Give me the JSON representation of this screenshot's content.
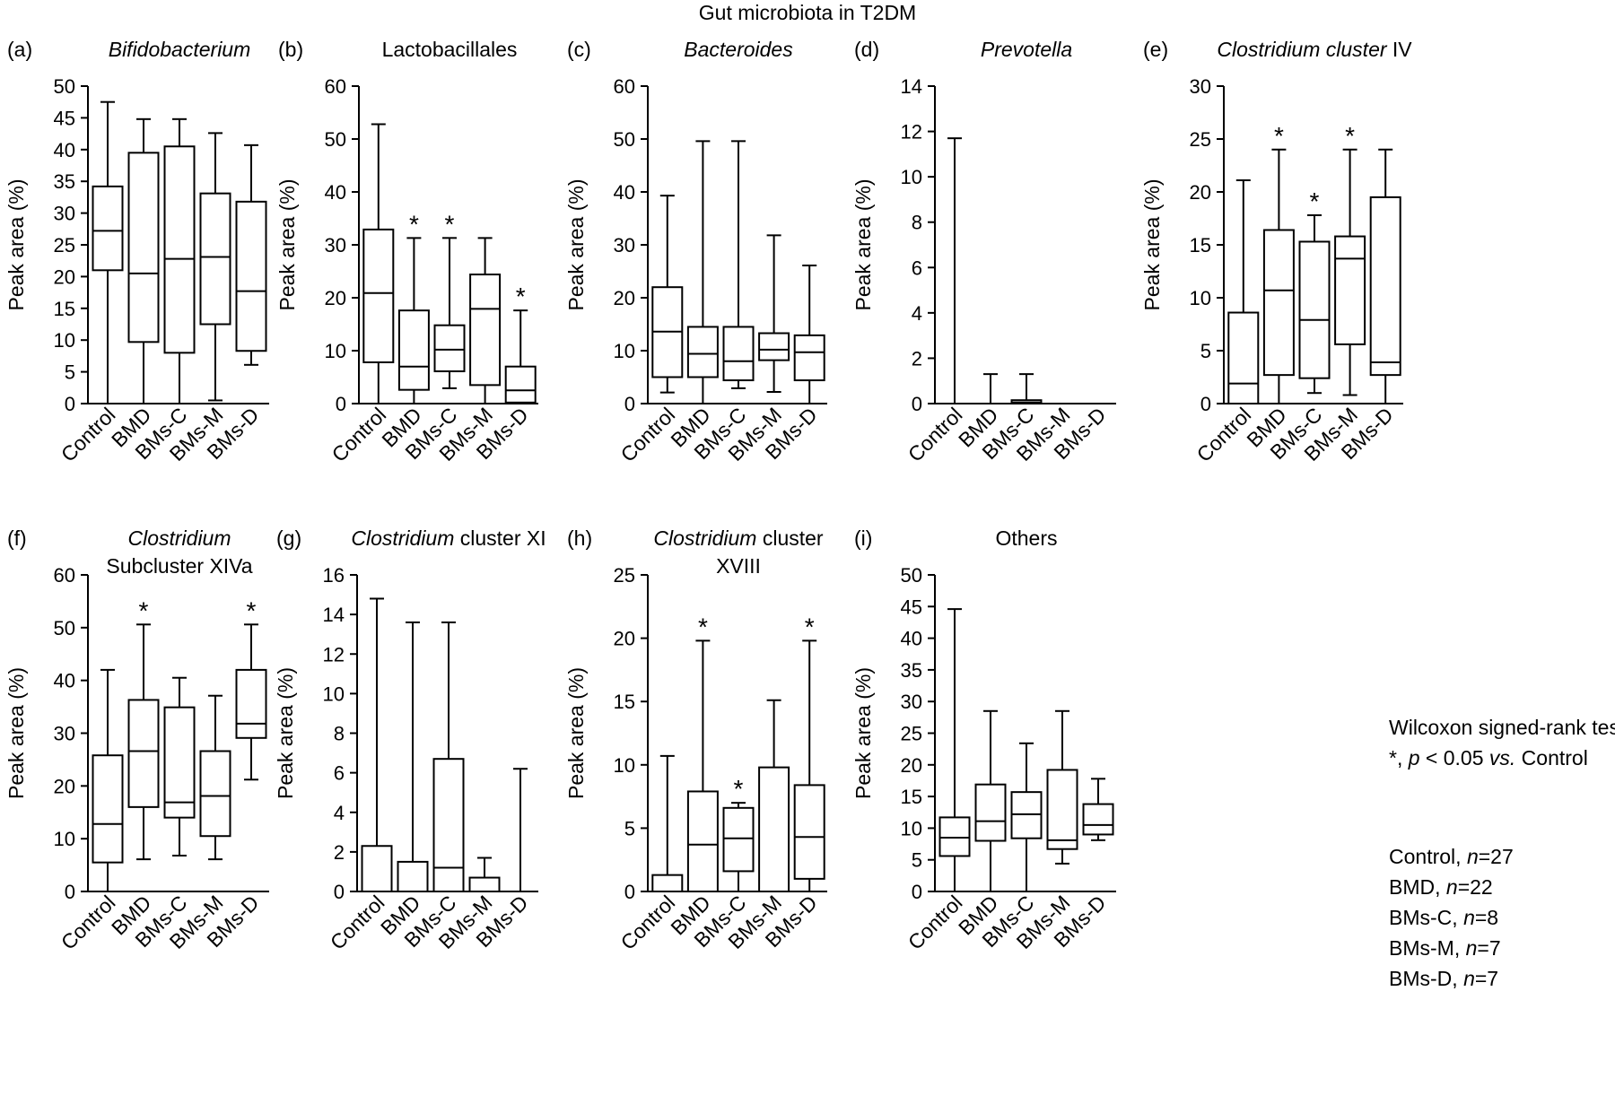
{
  "figure_title": "Gut microbiota in T2DM",
  "y_axis_label": "Peak area (%)",
  "significance_note": {
    "test": "Wilcoxon signed-rank test",
    "p_prefix": "*, ",
    "p_italic": "p",
    "p_value": " < 0.05 ",
    "vs_italic": "vs.",
    "reference": " Control"
  },
  "group_legend": [
    {
      "group": "Control",
      "n_label": "n",
      "n": "=27"
    },
    {
      "group": "BMD",
      "n_label": "n",
      "n": "=22"
    },
    {
      "group": "BMs-C",
      "n_label": "n",
      "n": "=8"
    },
    {
      "group": "BMs-M",
      "n_label": "n",
      "n": "=7"
    },
    {
      "group": "BMs-D",
      "n_label": "n",
      "n": "=7"
    }
  ],
  "chart_data": [
    {
      "type": "boxplot",
      "panel": "(a)",
      "title_parts": [
        {
          "text": "Bifidobacterium",
          "italic": true
        }
      ],
      "categories": [
        "Control",
        "BMD",
        "BMs-C",
        "BMs-M",
        "BMs-D"
      ],
      "ylim": [
        0,
        50
      ],
      "yticks": [
        0,
        5,
        10,
        15,
        20,
        25,
        30,
        35,
        40,
        45,
        50
      ],
      "ylabel": "Peak area (%)",
      "boxes": [
        {
          "min": 0,
          "q1": 21,
          "median": 27.2,
          "q3": 34.2,
          "max": 47.5,
          "significant": false
        },
        {
          "min": 0,
          "q1": 9.7,
          "median": 20.5,
          "q3": 39.5,
          "max": 44.8,
          "significant": false
        },
        {
          "min": 0,
          "q1": 8,
          "median": 22.8,
          "q3": 40.5,
          "max": 44.8,
          "significant": false
        },
        {
          "min": 0.5,
          "q1": 12.5,
          "median": 23.1,
          "q3": 33.1,
          "max": 42.6,
          "significant": false
        },
        {
          "min": 6.1,
          "q1": 8.3,
          "median": 17.7,
          "q3": 31.8,
          "max": 40.7,
          "significant": false
        }
      ]
    },
    {
      "type": "boxplot",
      "panel": "(b)",
      "title_parts": [
        {
          "text": "Lactobacillales",
          "italic": false
        }
      ],
      "categories": [
        "Control",
        "BMD",
        "BMs-C",
        "BMs-M",
        "BMs-D"
      ],
      "ylim": [
        0,
        60
      ],
      "yticks": [
        0,
        10,
        20,
        30,
        40,
        50,
        60
      ],
      "ylabel": "Peak area (%)",
      "boxes": [
        {
          "min": 0,
          "q1": 7.8,
          "median": 20.9,
          "q3": 32.9,
          "max": 52.8,
          "significant": false
        },
        {
          "min": 0,
          "q1": 2.6,
          "median": 7,
          "q3": 17.6,
          "max": 31.3,
          "significant": true
        },
        {
          "min": 2.9,
          "q1": 6.1,
          "median": 10.2,
          "q3": 14.8,
          "max": 31.3,
          "significant": true
        },
        {
          "min": 0,
          "q1": 3.5,
          "median": 17.9,
          "q3": 24.4,
          "max": 31.3,
          "significant": false
        },
        {
          "min": 0,
          "q1": 0.2,
          "median": 2.5,
          "q3": 7,
          "max": 17.6,
          "significant": true
        }
      ]
    },
    {
      "type": "boxplot",
      "panel": "(c)",
      "title_parts": [
        {
          "text": "Bacteroides",
          "italic": true
        }
      ],
      "categories": [
        "Control",
        "BMD",
        "BMs-C",
        "BMs-M",
        "BMs-D"
      ],
      "ylim": [
        0,
        60
      ],
      "yticks": [
        0,
        10,
        20,
        30,
        40,
        50,
        60
      ],
      "ylabel": "Peak area (%)",
      "boxes": [
        {
          "min": 2.1,
          "q1": 5,
          "median": 13.6,
          "q3": 22,
          "max": 39.3,
          "significant": false
        },
        {
          "min": 0,
          "q1": 5,
          "median": 9.4,
          "q3": 14.5,
          "max": 49.6,
          "significant": false
        },
        {
          "min": 2.9,
          "q1": 4.4,
          "median": 8,
          "q3": 14.5,
          "max": 49.6,
          "significant": false
        },
        {
          "min": 2.2,
          "q1": 8.2,
          "median": 10.2,
          "q3": 13.3,
          "max": 31.8,
          "significant": false
        },
        {
          "min": 0,
          "q1": 4.4,
          "median": 9.7,
          "q3": 12.9,
          "max": 26.1,
          "significant": false
        }
      ]
    },
    {
      "type": "boxplot",
      "panel": "(d)",
      "title_parts": [
        {
          "text": "Prevotella",
          "italic": true
        }
      ],
      "categories": [
        "Control",
        "BMD",
        "BMs-C",
        "BMs-M",
        "BMs-D"
      ],
      "ylim": [
        0,
        14
      ],
      "yticks": [
        0,
        2,
        4,
        6,
        8,
        10,
        12,
        14
      ],
      "ylabel": "Peak area (%)",
      "boxes": [
        {
          "min": 0,
          "q1": 0,
          "median": 0,
          "q3": 0,
          "max": 11.7,
          "significant": false
        },
        {
          "min": 0,
          "q1": 0,
          "median": 0,
          "q3": 0,
          "max": 1.3,
          "significant": false
        },
        {
          "min": 0,
          "q1": 0,
          "median": 0.05,
          "q3": 0.15,
          "max": 1.3,
          "significant": false
        },
        {
          "min": 0,
          "q1": 0,
          "median": 0,
          "q3": 0,
          "max": 0,
          "significant": false
        },
        {
          "min": 0,
          "q1": 0,
          "median": 0,
          "q3": 0,
          "max": 0,
          "significant": false
        }
      ]
    },
    {
      "type": "boxplot",
      "panel": "(e)",
      "title_parts": [
        {
          "text": "Clostridium cluster",
          "italic": true
        },
        {
          "text": " IV",
          "italic": false
        }
      ],
      "categories": [
        "Control",
        "BMD",
        "BMs-C",
        "BMs-M",
        "BMs-D"
      ],
      "ylim": [
        0,
        30
      ],
      "yticks": [
        0,
        5,
        10,
        15,
        20,
        25,
        30
      ],
      "ylabel": "Peak area (%)",
      "boxes": [
        {
          "min": 0,
          "q1": 0,
          "median": 1.9,
          "q3": 8.6,
          "max": 21.1,
          "significant": false
        },
        {
          "min": 0,
          "q1": 2.7,
          "median": 10.7,
          "q3": 16.4,
          "max": 24,
          "significant": true
        },
        {
          "min": 1,
          "q1": 2.4,
          "median": 7.9,
          "q3": 15.3,
          "max": 17.8,
          "significant": true
        },
        {
          "min": 0.8,
          "q1": 5.6,
          "median": 13.7,
          "q3": 15.8,
          "max": 24,
          "significant": true
        },
        {
          "min": 0,
          "q1": 2.7,
          "median": 3.9,
          "q3": 19.5,
          "max": 24,
          "significant": false
        }
      ]
    },
    {
      "type": "boxplot",
      "panel": "(f)",
      "title_parts": [
        {
          "text": "Clostridium",
          "italic": true
        }
      ],
      "title_line2": "Subcluster XIVa",
      "categories": [
        "Control",
        "BMD",
        "BMs-C",
        "BMs-M",
        "BMs-D"
      ],
      "ylim": [
        0,
        60
      ],
      "yticks": [
        0,
        10,
        20,
        30,
        40,
        50,
        60
      ],
      "ylabel": "Peak area (%)",
      "boxes": [
        {
          "min": 0,
          "q1": 5.5,
          "median": 12.8,
          "q3": 25.8,
          "max": 42,
          "significant": false
        },
        {
          "min": 6.1,
          "q1": 16,
          "median": 26.6,
          "q3": 36.3,
          "max": 50.6,
          "significant": true
        },
        {
          "min": 6.8,
          "q1": 14,
          "median": 16.9,
          "q3": 34.9,
          "max": 40.5,
          "significant": false
        },
        {
          "min": 6.1,
          "q1": 10.5,
          "median": 18.1,
          "q3": 26.6,
          "max": 37.1,
          "significant": false
        },
        {
          "min": 21.2,
          "q1": 29.1,
          "median": 31.8,
          "q3": 42,
          "max": 50.6,
          "significant": true
        }
      ]
    },
    {
      "type": "boxplot",
      "panel": "(g)",
      "title_parts": [
        {
          "text": "Clostridium",
          "italic": true
        },
        {
          "text": " cluster XI",
          "italic": false
        }
      ],
      "categories": [
        "Control",
        "BMD",
        "BMs-C",
        "BMs-M",
        "BMs-D"
      ],
      "ylim": [
        0,
        16
      ],
      "yticks": [
        0,
        2,
        4,
        6,
        8,
        10,
        12,
        14,
        16
      ],
      "ylabel": "Peak area (%)",
      "boxes": [
        {
          "min": 0,
          "q1": 0,
          "median": 0,
          "q3": 2.3,
          "max": 14.8,
          "significant": false
        },
        {
          "min": 0,
          "q1": 0,
          "median": 0,
          "q3": 1.5,
          "max": 13.6,
          "significant": false
        },
        {
          "min": 0,
          "q1": 0,
          "median": 1.2,
          "q3": 6.7,
          "max": 13.6,
          "significant": false
        },
        {
          "min": 0,
          "q1": 0,
          "median": 0,
          "q3": 0.7,
          "max": 1.7,
          "significant": false
        },
        {
          "min": 0,
          "q1": 0,
          "median": 0,
          "q3": 0,
          "max": 6.2,
          "significant": false
        }
      ]
    },
    {
      "type": "boxplot",
      "panel": "(h)",
      "title_parts": [
        {
          "text": "Clostridium",
          "italic": true
        },
        {
          "text": " cluster",
          "italic": false
        }
      ],
      "title_line2": "XVIII",
      "categories": [
        "Control",
        "BMD",
        "BMs-C",
        "BMs-M",
        "BMs-D"
      ],
      "ylim": [
        0,
        25
      ],
      "yticks": [
        0,
        5,
        10,
        15,
        20,
        25
      ],
      "ylabel": "Peak area (%)",
      "boxes": [
        {
          "min": 0,
          "q1": 0,
          "median": 0,
          "q3": 1.3,
          "max": 10.7,
          "significant": false
        },
        {
          "min": 0,
          "q1": 0,
          "median": 3.7,
          "q3": 7.9,
          "max": 19.8,
          "significant": true
        },
        {
          "min": 0,
          "q1": 1.6,
          "median": 4.2,
          "q3": 6.6,
          "max": 7,
          "significant": true
        },
        {
          "min": 0,
          "q1": 0,
          "median": 0,
          "q3": 9.8,
          "max": 15.1,
          "significant": false
        },
        {
          "min": 0,
          "q1": 1,
          "median": 4.3,
          "q3": 8.4,
          "max": 19.8,
          "significant": true
        }
      ]
    },
    {
      "type": "boxplot",
      "panel": "(i)",
      "title_parts": [
        {
          "text": "Others",
          "italic": false
        }
      ],
      "categories": [
        "Control",
        "BMD",
        "BMs-C",
        "BMs-M",
        "BMs-D"
      ],
      "ylim": [
        0,
        50
      ],
      "yticks": [
        0,
        5,
        10,
        15,
        20,
        25,
        30,
        35,
        40,
        45,
        50
      ],
      "ylabel": "Peak area (%)",
      "boxes": [
        {
          "min": 0,
          "q1": 5.6,
          "median": 8.5,
          "q3": 11.7,
          "max": 44.6,
          "significant": false
        },
        {
          "min": 0,
          "q1": 8,
          "median": 11.1,
          "q3": 16.9,
          "max": 28.5,
          "significant": false
        },
        {
          "min": 0,
          "q1": 8.4,
          "median": 12.2,
          "q3": 15.7,
          "max": 23.4,
          "significant": false
        },
        {
          "min": 4.4,
          "q1": 6.7,
          "median": 8.1,
          "q3": 19.2,
          "max": 28.5,
          "significant": false
        },
        {
          "min": 8.1,
          "q1": 9,
          "median": 10.5,
          "q3": 13.8,
          "max": 17.8,
          "significant": false
        }
      ]
    }
  ]
}
